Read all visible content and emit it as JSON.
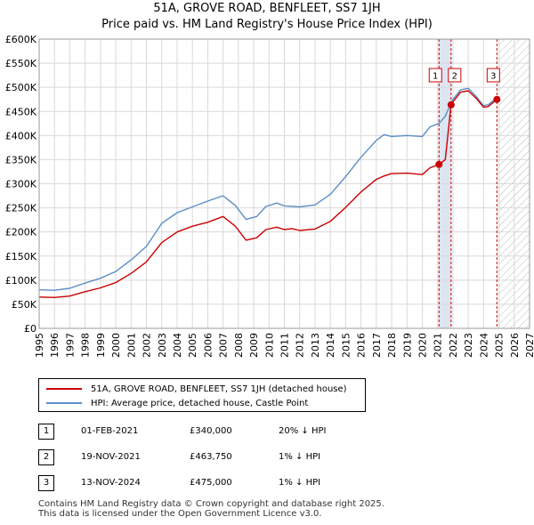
{
  "title_line1": "51A, GROVE ROAD, BENFLEET, SS7 1JH",
  "title_line2": "Price paid vs. HM Land Registry's House Price Index (HPI)",
  "colors": {
    "price_line": "#cc0000",
    "hpi_line": "#5b8ec7",
    "marker_fill": "#cc0000",
    "vline": "#cc0000",
    "highlight": "#dde4f2",
    "hatch": "#bbbbbb"
  },
  "chart_data": {
    "type": "line",
    "title": "51A, GROVE ROAD, BENFLEET, SS7 1JH — Price paid vs. HM Land Registry's House Price Index (HPI)",
    "xlabel": "",
    "ylabel": "",
    "xlim": [
      1995,
      2027
    ],
    "ylim": [
      0,
      600000
    ],
    "y_ticks": [
      0,
      50000,
      100000,
      150000,
      200000,
      250000,
      300000,
      350000,
      400000,
      450000,
      500000,
      550000,
      600000
    ],
    "y_tick_labels": [
      "£0",
      "£50K",
      "£100K",
      "£150K",
      "£200K",
      "£250K",
      "£300K",
      "£350K",
      "£400K",
      "£450K",
      "£500K",
      "£550K",
      "£600K"
    ],
    "x_ticks": [
      1995,
      1996,
      1997,
      1998,
      1999,
      2000,
      2001,
      2002,
      2003,
      2004,
      2005,
      2006,
      2007,
      2008,
      2009,
      2010,
      2011,
      2012,
      2013,
      2014,
      2015,
      2016,
      2017,
      2018,
      2019,
      2020,
      2021,
      2022,
      2023,
      2024,
      2025,
      2026,
      2027
    ],
    "x_tick_labels": [
      "1995",
      "1996",
      "1997",
      "1998",
      "1999",
      "2000",
      "2001",
      "2002",
      "2003",
      "2004",
      "2005",
      "2006",
      "2007",
      "2008",
      "2009",
      "2010",
      "2011",
      "2012",
      "2013",
      "2014",
      "2015",
      "2016",
      "2017",
      "2018",
      "2019",
      "2020",
      "2021",
      "2022",
      "2023",
      "2024",
      "2025",
      "2026",
      "2027"
    ],
    "grid": true,
    "series": [
      {
        "name": "51A, GROVE ROAD, BENFLEET, SS7 1JH (detached house)",
        "x": [
          1995.0,
          1996.0,
          1997.0,
          1998.0,
          1999.0,
          2000.0,
          2001.0,
          2002.0,
          2003.0,
          2004.0,
          2005.0,
          2006.0,
          2007.0,
          2007.8,
          2008.5,
          2009.2,
          2009.8,
          2010.5,
          2011.0,
          2011.5,
          2012.0,
          2013.0,
          2014.0,
          2015.0,
          2016.0,
          2017.0,
          2017.5,
          2018.0,
          2019.0,
          2020.0,
          2020.5,
          2021.09,
          2021.5,
          2021.88,
          2022.0,
          2022.5,
          2023.0,
          2023.5,
          2024.0,
          2024.3,
          2024.87
        ],
        "values": [
          65000,
          64000,
          67000,
          76000,
          84000,
          95000,
          114000,
          138000,
          178000,
          200000,
          212000,
          220000,
          232000,
          212000,
          183000,
          188000,
          205000,
          210000,
          205000,
          207000,
          203000,
          206000,
          222000,
          251000,
          283000,
          309000,
          316000,
          321000,
          322000,
          319000,
          333000,
          340000,
          350000,
          463750,
          470000,
          490000,
          493000,
          478000,
          459000,
          460000,
          475000
        ]
      },
      {
        "name": "HPI: Average price, detached house, Castle Point",
        "x": [
          1995.0,
          1996.0,
          1997.0,
          1998.0,
          1999.0,
          2000.0,
          2001.0,
          2002.0,
          2003.0,
          2004.0,
          2005.0,
          2006.0,
          2007.0,
          2007.8,
          2008.5,
          2009.2,
          2009.8,
          2010.5,
          2011.0,
          2012.0,
          2013.0,
          2014.0,
          2015.0,
          2016.0,
          2017.0,
          2017.5,
          2018.0,
          2019.0,
          2020.0,
          2020.5,
          2021.09,
          2021.5,
          2021.88,
          2022.0,
          2022.5,
          2023.0,
          2023.5,
          2024.0,
          2024.3,
          2024.87
        ],
        "values": [
          80000,
          79000,
          83000,
          94000,
          104000,
          118000,
          142000,
          170000,
          218000,
          240000,
          252000,
          264000,
          275000,
          255000,
          226000,
          232000,
          253000,
          260000,
          254000,
          252000,
          256000,
          278000,
          315000,
          355000,
          390000,
          402000,
          398000,
          400000,
          398000,
          418000,
          425000,
          440000,
          468000,
          475000,
          495000,
          498000,
          482000,
          462000,
          464000,
          478000
        ]
      }
    ],
    "transactions": [
      {
        "label": "1",
        "x": 2021.09,
        "value": 340000
      },
      {
        "label": "2",
        "x": 2021.88,
        "value": 463750
      },
      {
        "label": "3",
        "x": 2024.87,
        "value": 475000
      }
    ],
    "highlight_range": [
      2021.09,
      2021.88
    ],
    "forecast_start": 2025.0
  },
  "legend": {
    "price_label": "51A, GROVE ROAD, BENFLEET, SS7 1JH (detached house)",
    "hpi_label": "HPI: Average price, detached house, Castle Point"
  },
  "table": [
    {
      "num": "1",
      "date": "01-FEB-2021",
      "price": "£340,000",
      "pct": "20% ↓ HPI"
    },
    {
      "num": "2",
      "date": "19-NOV-2021",
      "price": "£463,750",
      "pct": "1% ↓ HPI"
    },
    {
      "num": "3",
      "date": "13-NOV-2024",
      "price": "£475,000",
      "pct": "1% ↓ HPI"
    }
  ],
  "footer": {
    "line1": "Contains HM Land Registry data © Crown copyright and database right 2025.",
    "line2": "This data is licensed under the Open Government Licence v3.0."
  }
}
